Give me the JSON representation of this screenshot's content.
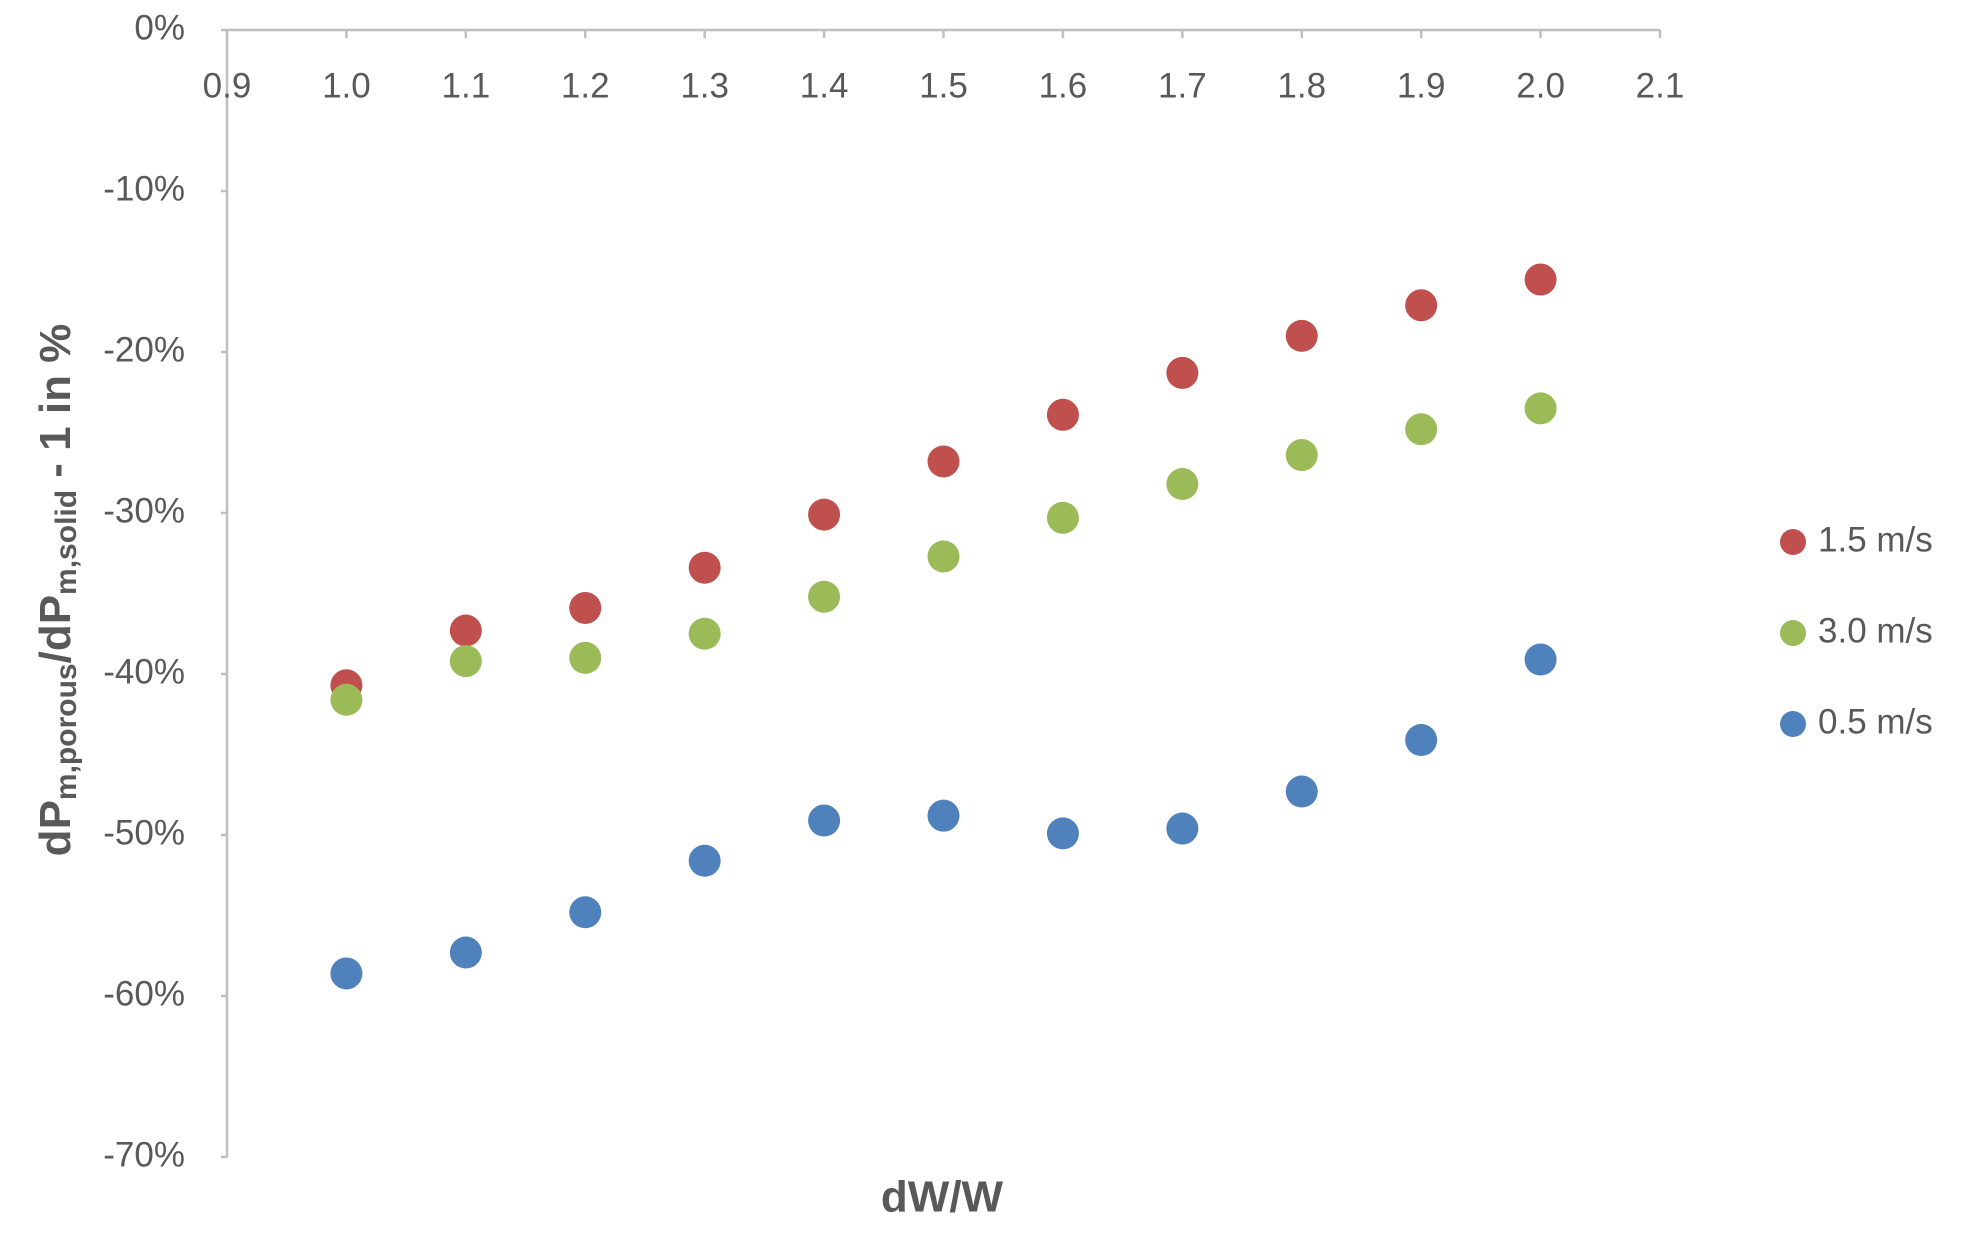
{
  "chart_data": {
    "type": "scatter",
    "xlabel": "dW/W",
    "ylabel_parts": [
      "dP",
      "m,porous",
      "/dP",
      "m,solid",
      " - 1 in %"
    ],
    "x": [
      1.0,
      1.1,
      1.2,
      1.3,
      1.4,
      1.5,
      1.6,
      1.7,
      1.8,
      1.9,
      2.0
    ],
    "series": [
      {
        "name": "1.5 m/s",
        "color": "#c0504d",
        "values": [
          -40.7,
          -37.3,
          -35.9,
          -33.4,
          -30.1,
          -26.8,
          -23.9,
          -21.3,
          -19.0,
          -17.1,
          -15.5
        ]
      },
      {
        "name": "3.0 m/s",
        "color": "#9bbb59",
        "values": [
          -41.6,
          -39.2,
          -39.0,
          -37.5,
          -35.2,
          -32.7,
          -30.3,
          -28.2,
          -26.4,
          -24.8,
          -23.5
        ]
      },
      {
        "name": "0.5 m/s",
        "color": "#4f81bd",
        "values": [
          -58.6,
          -57.3,
          -54.8,
          -51.6,
          -49.1,
          -48.8,
          -49.9,
          -49.6,
          -47.3,
          -44.1,
          -39.1
        ]
      }
    ],
    "xlim": [
      0.9,
      2.1
    ],
    "xticks": [
      0.9,
      {
        "value": 1,
        "label": "1.0"
      },
      1.1,
      1.2,
      1.3,
      1.4,
      1.5,
      1.6,
      1.7,
      1.8,
      1.9,
      {
        "value": 2,
        "label": "2.0"
      },
      2.1
    ],
    "ylim": [
      -70,
      0
    ],
    "yticks": [
      {
        "value": 0,
        "label": "0%"
      },
      {
        "value": -10,
        "label": "-10%"
      },
      {
        "value": -20,
        "label": "-20%"
      },
      {
        "value": -30,
        "label": "-30%"
      },
      {
        "value": -40,
        "label": "-40%"
      },
      {
        "value": -50,
        "label": "-50%"
      },
      {
        "value": -60,
        "label": "-60%"
      },
      {
        "value": -70,
        "label": "-70%"
      }
    ],
    "grid": false,
    "legend": "right"
  }
}
